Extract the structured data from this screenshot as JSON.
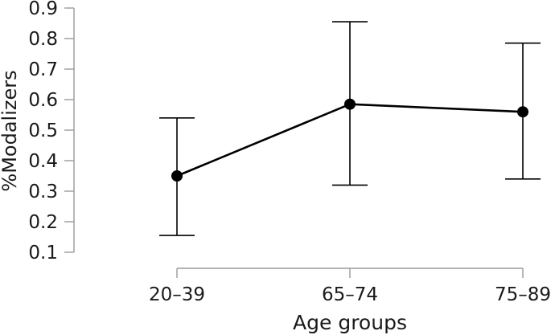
{
  "figure": {
    "background": "#ffffff",
    "text_color": "#1a1a1a",
    "axis_color": "#9a9a9a",
    "data_color": "#000000"
  },
  "chart_data": {
    "type": "line",
    "title": "",
    "xlabel": "Age groups",
    "ylabel": "%Modalizers",
    "categories": [
      "20–39",
      "65–74",
      "75–89"
    ],
    "series": [
      {
        "name": "%Modalizers",
        "values": [
          0.35,
          0.585,
          0.56
        ],
        "error_low": [
          0.155,
          0.32,
          0.34
        ],
        "error_high": [
          0.54,
          0.855,
          0.785
        ]
      }
    ],
    "yticks": [
      0.9,
      0.8,
      0.7,
      0.6,
      0.5,
      0.4,
      0.3,
      0.2,
      0.1
    ],
    "ytick_format_decimals": 1,
    "ylim": [
      0.1,
      0.9
    ],
    "grid": false,
    "legend": false,
    "marker": "filled-circle",
    "error_bars": true
  }
}
